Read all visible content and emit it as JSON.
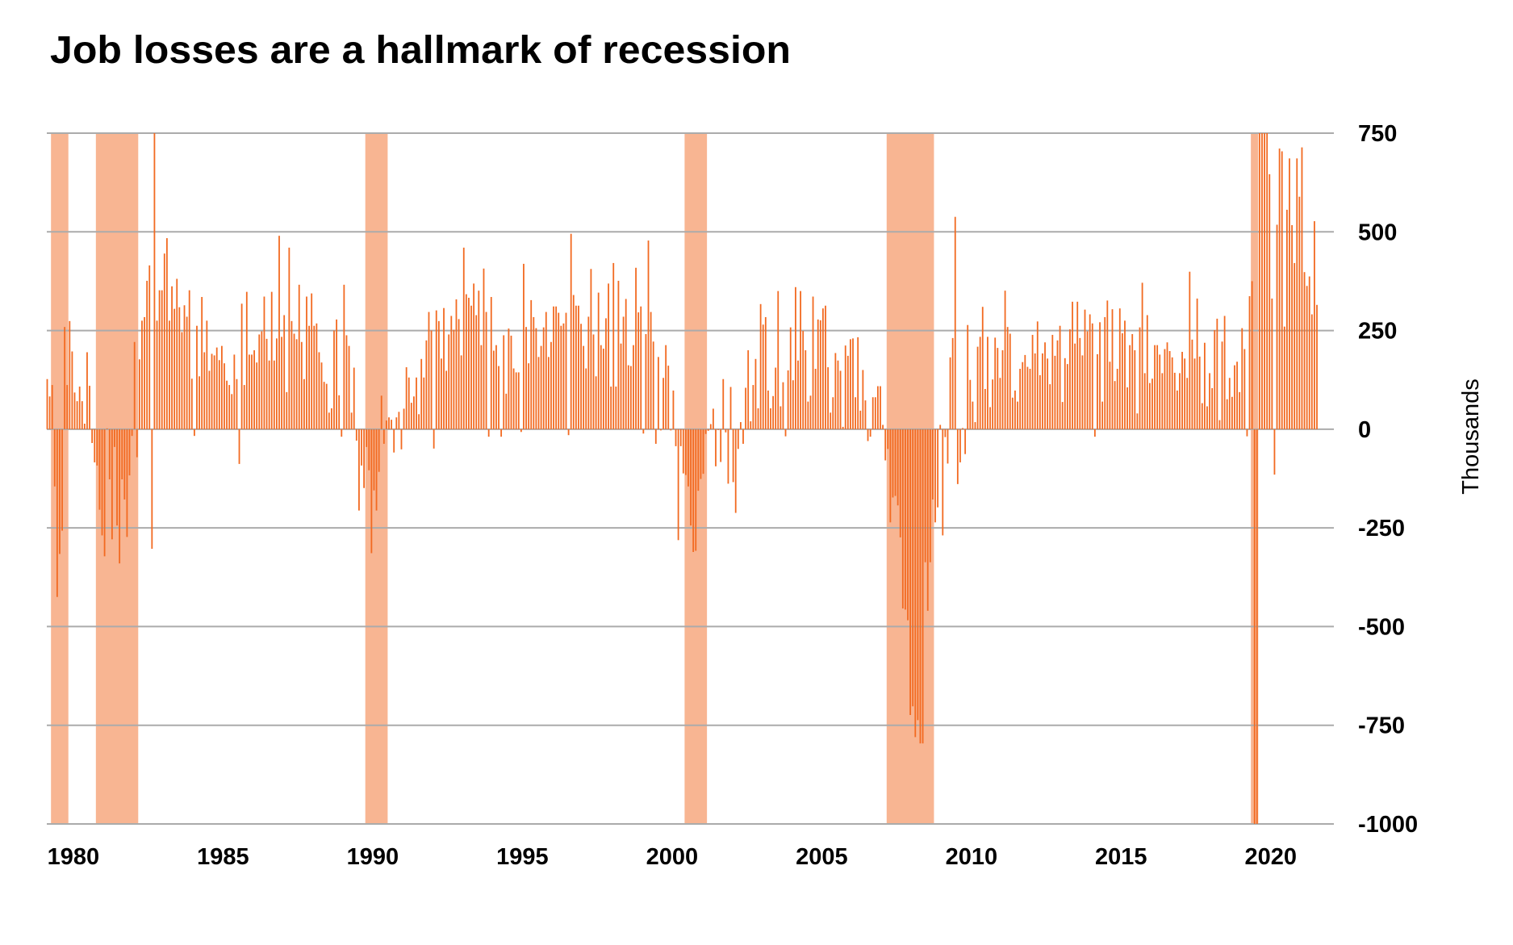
{
  "chart_data": {
    "type": "bar",
    "title": "Job losses are a hallmark of recession",
    "xlabel": "",
    "ylabel": "Thousands",
    "ylim": [
      -1000,
      750
    ],
    "y_ticks": [
      "750",
      "500",
      "250",
      "0",
      "-250",
      "-500",
      "-750",
      "-1000"
    ],
    "y_tick_values": [
      750,
      500,
      250,
      0,
      -250,
      -500,
      -750,
      -1000
    ],
    "x_ticks": [
      "1980",
      "1985",
      "1990",
      "1995",
      "2000",
      "2005",
      "2010",
      "2015",
      "2020"
    ],
    "x_start": "1979-11",
    "x_end": "2022-04",
    "x_step": "month",
    "grid": "horizontal",
    "y_axis_side": "right",
    "colors": {
      "bar": "#F26A21",
      "recession": "#F8B592",
      "grid": "#ABABAB"
    },
    "recessions": [
      {
        "start": "1980-01",
        "end": "1980-07"
      },
      {
        "start": "1981-07",
        "end": "1982-11"
      },
      {
        "start": "1990-07",
        "end": "1991-03"
      },
      {
        "start": "2001-03",
        "end": "2001-11"
      },
      {
        "start": "2007-12",
        "end": "2009-06"
      },
      {
        "start": "2020-02",
        "end": "2020-04"
      }
    ],
    "values": [
      127,
      83,
      112,
      -145,
      -425,
      -316,
      -257,
      259,
      112,
      274,
      197,
      93,
      71,
      108,
      71,
      14,
      195,
      110,
      -35,
      -84,
      -92,
      -204,
      -269,
      -322,
      2,
      -127,
      -279,
      -45,
      -244,
      -340,
      -127,
      -178,
      -273,
      -117,
      -17,
      221,
      -71,
      177,
      275,
      284,
      376,
      415,
      -303,
      1114,
      275,
      352,
      352,
      445,
      484,
      275,
      362,
      305,
      381,
      309,
      246,
      314,
      285,
      352,
      128,
      -17,
      262,
      134,
      335,
      195,
      275,
      148,
      191,
      187,
      207,
      175,
      211,
      167,
      123,
      112,
      89,
      189,
      127,
      -88,
      318,
      112,
      348,
      189,
      189,
      200,
      169,
      240,
      248,
      336,
      229,
      174,
      348,
      174,
      230,
      490,
      234,
      289,
      94,
      460,
      274,
      242,
      228,
      366,
      221,
      127,
      336,
      262,
      344,
      262,
      268,
      195,
      169,
      120,
      115,
      42,
      53,
      250,
      278,
      86,
      -19,
      366,
      238,
      211,
      42,
      156,
      -29,
      -206,
      -92,
      -149,
      -45,
      -104,
      -314,
      -155,
      -206,
      -108,
      85,
      -37,
      22,
      30,
      24,
      -59,
      30,
      44,
      -51,
      52,
      157,
      131,
      67,
      83,
      131,
      38,
      178,
      131,
      225,
      297,
      250,
      -49,
      301,
      274,
      179,
      307,
      148,
      240,
      287,
      252,
      329,
      279,
      187,
      460,
      342,
      333,
      313,
      369,
      289,
      351,
      213,
      407,
      297,
      -19,
      335,
      199,
      213,
      160,
      -19,
      238,
      90,
      255,
      237,
      154,
      144,
      144,
      -7,
      419,
      259,
      167,
      327,
      284,
      256,
      183,
      211,
      258,
      297,
      183,
      221,
      311,
      311,
      295,
      262,
      268,
      295,
      -15,
      495,
      340,
      313,
      313,
      267,
      211,
      154,
      285,
      406,
      240,
      134,
      346,
      213,
      204,
      281,
      369,
      108,
      421,
      108,
      376,
      217,
      285,
      330,
      162,
      160,
      213,
      409,
      296,
      311,
      -11,
      241,
      478,
      297,
      222,
      -37,
      183,
      -3,
      130,
      213,
      161,
      -3,
      98,
      -43,
      -281,
      -43,
      -112,
      -116,
      -145,
      -244,
      -311,
      -308,
      -156,
      -126,
      -113,
      -12,
      -4,
      13,
      52,
      -94,
      -2,
      -83,
      127,
      -8,
      -138,
      107,
      -134,
      -212,
      -50,
      18,
      -37,
      105,
      200,
      20,
      112,
      178,
      53,
      317,
      265,
      284,
      98,
      53,
      84,
      156,
      350,
      58,
      119,
      -18,
      149,
      258,
      124,
      360,
      174,
      350,
      249,
      200,
      70,
      85,
      336,
      153,
      278,
      276,
      306,
      313,
      157,
      42,
      81,
      193,
      174,
      148,
      6,
      212,
      186,
      228,
      230,
      81,
      233,
      47,
      150,
      73,
      -30,
      -19,
      81,
      81,
      109,
      109,
      11,
      -79,
      -50,
      -236,
      -173,
      -169,
      -193,
      -274,
      -454,
      -457,
      -484,
      -724,
      -702,
      -780,
      -737,
      -796,
      -796,
      -337,
      -460,
      -337,
      -178,
      -236,
      -198,
      11,
      -269,
      -20,
      -87,
      182,
      231,
      538,
      -139,
      -84,
      3,
      -63,
      264,
      125,
      70,
      18,
      209,
      234,
      310,
      102,
      234,
      56,
      126,
      232,
      206,
      130,
      200,
      351,
      259,
      242,
      80,
      98,
      70,
      153,
      170,
      188,
      158,
      153,
      239,
      192,
      273,
      137,
      192,
      220,
      179,
      114,
      239,
      186,
      225,
      262,
      69,
      180,
      165,
      253,
      323,
      217,
      323,
      231,
      187,
      303,
      248,
      291,
      268,
      -19,
      190,
      271,
      70,
      284,
      326,
      171,
      304,
      122,
      153,
      306,
      243,
      275,
      106,
      213,
      241,
      200,
      40,
      258,
      371,
      142,
      289,
      117,
      128,
      213,
      213,
      189,
      142,
      203,
      220,
      198,
      182,
      143,
      98,
      142,
      196,
      179,
      130,
      399,
      227,
      179,
      331,
      184,
      66,
      219,
      58,
      142,
      104,
      251,
      280,
      23,
      222,
      287,
      76,
      130,
      82,
      162,
      171,
      94,
      256,
      203,
      -18,
      337,
      375,
      -1683,
      -20679,
      2833,
      4846,
      1726,
      1583,
      646,
      331,
      -115,
      518,
      711,
      704,
      260,
      556,
      686,
      517,
      421,
      686,
      589,
      714,
      398,
      363,
      387,
      291,
      527,
      315
    ]
  }
}
